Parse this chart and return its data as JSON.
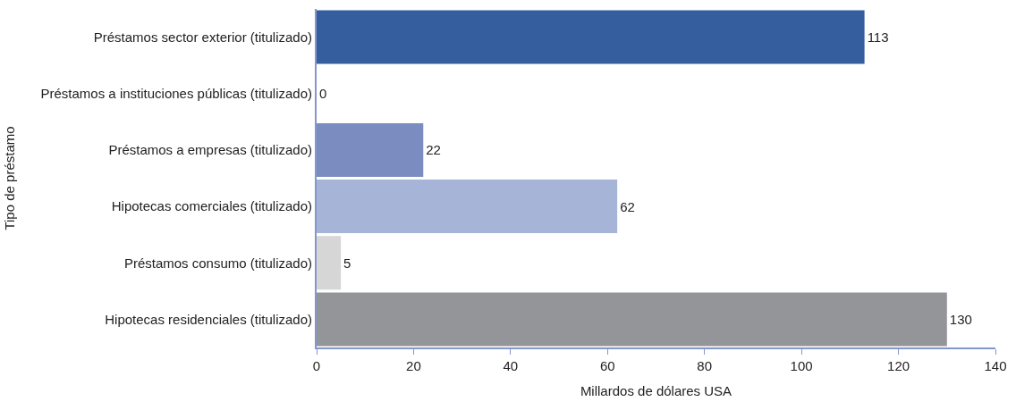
{
  "chart_data": {
    "type": "bar",
    "orientation": "horizontal",
    "xlabel": "Millardos de dólares USA",
    "ylabel": "Tipo de préstamo",
    "categories": [
      "Préstamos sector exterior (titulizado)",
      "Préstamos a instituciones públicas (titulizado)",
      "Préstamos a empresas (titulizado)",
      "Hipotecas comerciales (titulizado)",
      "Préstamos consumo (titulizado)",
      "Hipotecas residenciales (titulizado)"
    ],
    "values": [
      113,
      0,
      22,
      62,
      5,
      130
    ],
    "colors": [
      "#355e9f",
      "#4e6fb0",
      "#7a8cc0",
      "#a6b4d7",
      "#d6d6d6",
      "#939598"
    ],
    "xlim": [
      0,
      140
    ],
    "xticks": [
      0,
      20,
      40,
      60,
      80,
      100,
      120,
      140
    ],
    "data_labels": true,
    "grid": false
  }
}
